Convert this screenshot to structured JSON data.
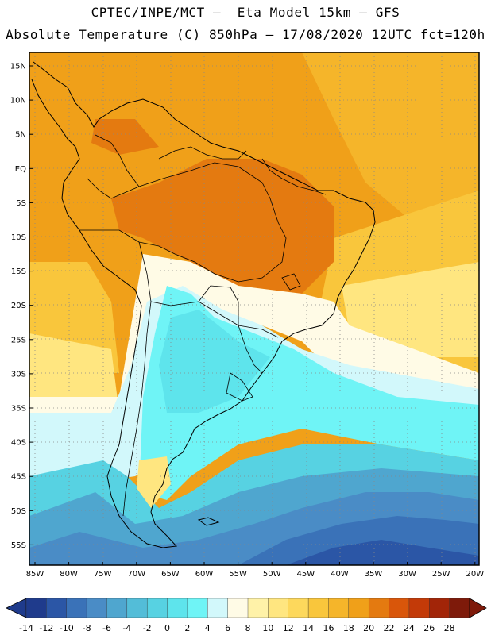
{
  "header": {
    "line1": "CPTEC/INPE/MCT –  Eta Model 15km – GFS",
    "line2": "Absolute Temperature (C) 850hPa – 17/08/2020 12UTC fct=120h"
  },
  "axes": {
    "lat_labels": [
      "15N",
      "10N",
      "5N",
      "EQ",
      "5S",
      "10S",
      "15S",
      "20S",
      "25S",
      "30S",
      "35S",
      "40S",
      "45S",
      "50S",
      "55S"
    ],
    "lon_labels": [
      "85W",
      "80W",
      "75W",
      "70W",
      "65W",
      "60W",
      "55W",
      "50W",
      "45W",
      "40W",
      "35W",
      "30W",
      "25W",
      "20W"
    ]
  },
  "colorbar": {
    "labels": [
      "-14",
      "-12",
      "-10",
      "-8",
      "-6",
      "-4",
      "-2",
      "0",
      "2",
      "4",
      "6",
      "8",
      "10",
      "12",
      "14",
      "16",
      "18",
      "20",
      "22",
      "24",
      "26",
      "28"
    ],
    "colors": [
      "#1f3b8c",
      "#2b56a6",
      "#3a72b8",
      "#4a8cc6",
      "#4fa6cf",
      "#53bdd8",
      "#57d2e2",
      "#5ee4ec",
      "#6ff4f6",
      "#d2f8fb",
      "#fffbe6",
      "#fff2a8",
      "#ffe680",
      "#fdd85c",
      "#f9c63c",
      "#f5b52a",
      "#f0a019",
      "#e47a10",
      "#d9560a",
      "#c33a08",
      "#a22508",
      "#7e1a0a"
    ],
    "low_arrow_color": "#1f3b8c",
    "high_arrow_color": "#7e1a0a"
  },
  "map_colors": {
    "ocean_cold_deep": "#2b56a6",
    "cold_mid": "#4a8cc6",
    "cool": "#57d2e2",
    "cyan": "#5ee4ec",
    "pale": "#d2f8fb",
    "cream": "#fffbe6",
    "yellow": "#ffe680",
    "gold": "#f9c63c",
    "orange_light": "#f5b52a",
    "orange": "#f0a019",
    "orange_dark": "#e47a10"
  }
}
